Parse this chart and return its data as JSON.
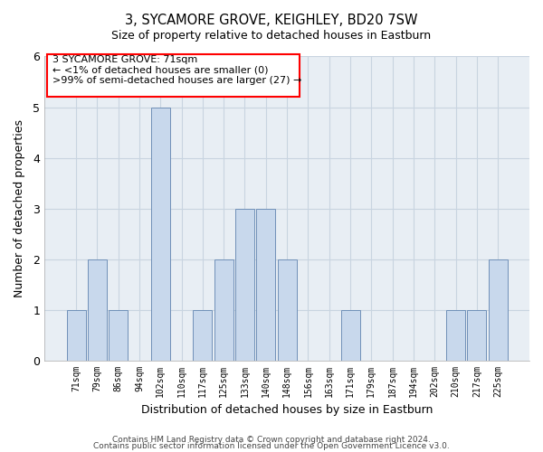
{
  "title": "3, SYCAMORE GROVE, KEIGHLEY, BD20 7SW",
  "subtitle": "Size of property relative to detached houses in Eastburn",
  "xlabel": "Distribution of detached houses by size in Eastburn",
  "ylabel": "Number of detached properties",
  "bin_labels": [
    "71sqm",
    "79sqm",
    "86sqm",
    "94sqm",
    "102sqm",
    "110sqm",
    "117sqm",
    "125sqm",
    "133sqm",
    "140sqm",
    "148sqm",
    "156sqm",
    "163sqm",
    "171sqm",
    "179sqm",
    "187sqm",
    "194sqm",
    "202sqm",
    "210sqm",
    "217sqm",
    "225sqm"
  ],
  "bar_heights": [
    1,
    2,
    1,
    0,
    5,
    0,
    1,
    2,
    3,
    3,
    2,
    0,
    0,
    1,
    0,
    0,
    0,
    0,
    1,
    1,
    2
  ],
  "bar_color": "#c8d8ec",
  "bar_edge_color": "#7090b8",
  "ylim": [
    0,
    6
  ],
  "yticks": [
    0,
    1,
    2,
    3,
    4,
    5,
    6
  ],
  "annotation_line1": "3 SYCAMORE GROVE: 71sqm",
  "annotation_line2": "← <1% of detached houses are smaller (0)",
  "annotation_line3": ">99% of semi-detached houses are larger (27) →",
  "footer_line1": "Contains HM Land Registry data © Crown copyright and database right 2024.",
  "footer_line2": "Contains public sector information licensed under the Open Government Licence v3.0.",
  "grid_color": "#c8d4e0",
  "background_color": "#e8eef4"
}
